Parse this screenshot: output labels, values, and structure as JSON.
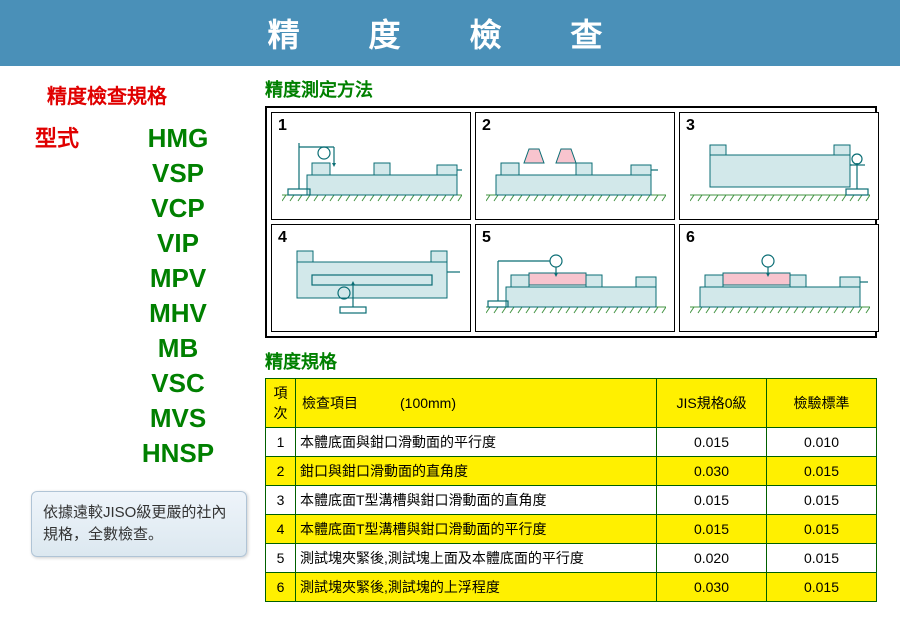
{
  "title": "精 度 檢 查",
  "spec_label": "精度檢查規格",
  "type_label": "型式",
  "models": [
    "HMG",
    "VSP",
    "VCP",
    "VIP",
    "MPV",
    "MHV",
    "MB",
    "VSC",
    "MVS",
    "HNSP"
  ],
  "note": "依據遠較JISO級更嚴的社內規格，全數檢查。",
  "diagram_label": "精度測定方法",
  "diagram_numbers": [
    "1",
    "2",
    "3",
    "4",
    "5",
    "6"
  ],
  "table_label": "精度規格",
  "table": {
    "headers": {
      "seq": "項次",
      "item": "檢查項目　　　(100mm)",
      "jis": "JIS規格0級",
      "std": "檢驗標準"
    },
    "rows": [
      {
        "seq": "1",
        "item": "本體底面與鉗口滑動面的平行度",
        "jis": "0.015",
        "std": "0.010",
        "hl": false
      },
      {
        "seq": "2",
        "item": "鉗口與鉗口滑動面的直角度",
        "jis": "0.030",
        "std": "0.015",
        "hl": true
      },
      {
        "seq": "3",
        "item": "本體底面T型溝槽與鉗口滑動面的直角度",
        "jis": "0.015",
        "std": "0.015",
        "hl": false
      },
      {
        "seq": "4",
        "item": "本體底面T型溝槽與鉗口滑動面的平行度",
        "jis": "0.015",
        "std": "0.015",
        "hl": true
      },
      {
        "seq": "5",
        "item": "測試塊夾緊後,測試塊上面及本體底面的平行度",
        "jis": "0.020",
        "std": "0.015",
        "hl": false
      },
      {
        "seq": "6",
        "item": "測試塊夾緊後,測試塊的上浮程度",
        "jis": "0.030",
        "std": "0.015",
        "hl": true
      }
    ]
  },
  "style": {
    "title_bg": "#4a90b8",
    "title_color": "#ffffff",
    "red": "#e00000",
    "green": "#008000",
    "vise_fill": "#d2e8ea",
    "vise_stroke": "#0b6e75",
    "pink": "#f8c4ce",
    "highlight": "#fff000"
  }
}
